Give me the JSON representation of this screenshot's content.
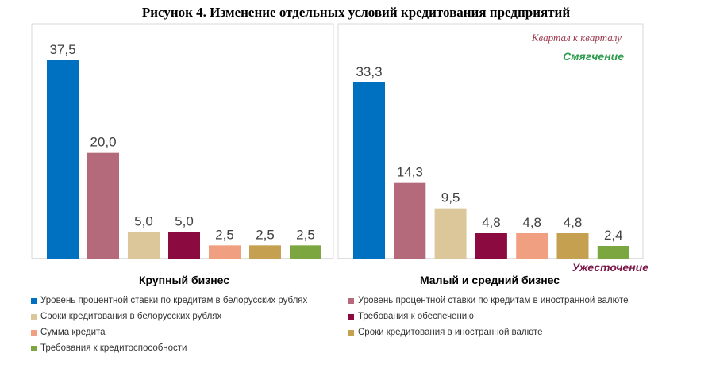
{
  "title": "Рисунок 4. Изменение отдельных условий кредитования предприятий",
  "annotations": {
    "period": "Квартал к кварталу",
    "softening": "Смягчение",
    "tightening": "Ужесточение"
  },
  "colors": {
    "softening": "#2e9b4e",
    "tightening": "#7b1848",
    "period": "#9b3b4e"
  },
  "chart_data": [
    {
      "type": "bar",
      "title": "Крупный бизнес",
      "values": [
        37.5,
        20.0,
        5.0,
        5.0,
        2.5,
        2.5,
        2.5
      ],
      "labels": [
        "37,5",
        "20,0",
        "5,0",
        "5,0",
        "2,5",
        "2,5",
        "2,5"
      ],
      "ylim": [
        0,
        42
      ],
      "grid": false
    },
    {
      "type": "bar",
      "title": "Малый и средний бизнес",
      "values": [
        33.3,
        14.3,
        9.5,
        4.8,
        4.8,
        4.8,
        2.4
      ],
      "labels": [
        "33,3",
        "14,3",
        "9,5",
        "4,8",
        "4,8",
        "4,8",
        "2,4"
      ],
      "ylim": [
        0,
        42
      ],
      "grid": false
    }
  ],
  "series": [
    {
      "name": "Уровень процентной ставки по кредитам в белорусских рублях",
      "color": "#0070c0"
    },
    {
      "name": "Уровень процентной ставки по кредитам в иностранной валюте",
      "color": "#b46a7b"
    },
    {
      "name": "Сроки кредитования  в белорусских рублях",
      "color": "#dcc79a"
    },
    {
      "name": "Требования к обеспечению",
      "color": "#8b0a40"
    },
    {
      "name": "Сумма кредита",
      "color": "#f0a080"
    },
    {
      "name": "Сроки кредитования  в иностранной валюте",
      "color": "#c4a050"
    },
    {
      "name": "Требования к кредитоспособности",
      "color": "#7ca640"
    }
  ],
  "legend_position": "bottom"
}
